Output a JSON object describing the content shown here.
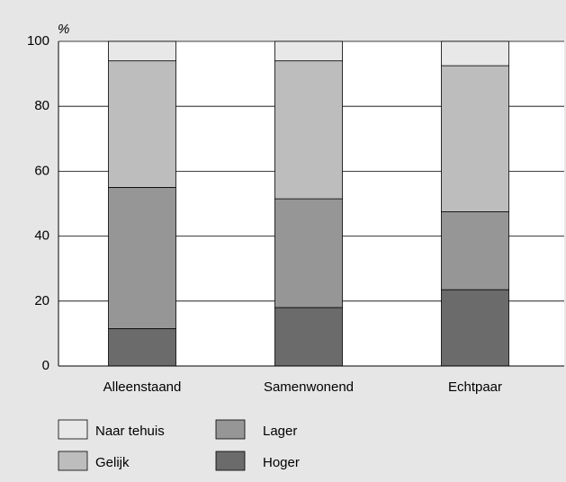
{
  "chart_data": {
    "type": "stacked-bar",
    "y_label": "%",
    "categories": [
      "Alleenstaand",
      "Samenwonend",
      "Echtpaar"
    ],
    "series": [
      {
        "name": "Hoger",
        "color": "#6b6b6b",
        "values": [
          11.5,
          18,
          23.5
        ]
      },
      {
        "name": "Lager",
        "color": "#969696",
        "values": [
          43.5,
          33.5,
          24
        ]
      },
      {
        "name": "Gelijk",
        "color": "#bdbdbd",
        "values": [
          39,
          42.5,
          45
        ]
      },
      {
        "name": "Naar tehuis",
        "color": "#e8e8e8",
        "values": [
          6,
          6,
          7.5
        ]
      }
    ],
    "ylim": [
      0,
      100
    ],
    "yticks": [
      0,
      20,
      40,
      60,
      80,
      100
    ],
    "grid": true
  }
}
